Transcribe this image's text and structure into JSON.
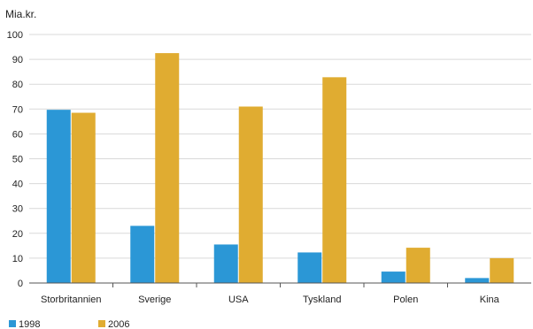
{
  "chart_data": {
    "type": "bar",
    "ylabel": "Mia.kr.",
    "xlabel": "",
    "title": "",
    "ylim": [
      0,
      100
    ],
    "yticks": [
      0,
      10,
      20,
      30,
      40,
      50,
      60,
      70,
      80,
      90,
      100
    ],
    "grid": true,
    "legend_position": "bottom-left",
    "categories": [
      "Storbritannien",
      "Sverige",
      "USA",
      "Tyskland",
      "Polen",
      "Kina"
    ],
    "series": [
      {
        "name": "1998",
        "color": "#2b97d6",
        "values": [
          69.7,
          23.0,
          15.5,
          12.3,
          4.6,
          2.0
        ]
      },
      {
        "name": "2006",
        "color": "#e0ac31",
        "values": [
          68.5,
          92.5,
          71.0,
          82.8,
          14.2,
          10.0
        ]
      }
    ]
  }
}
